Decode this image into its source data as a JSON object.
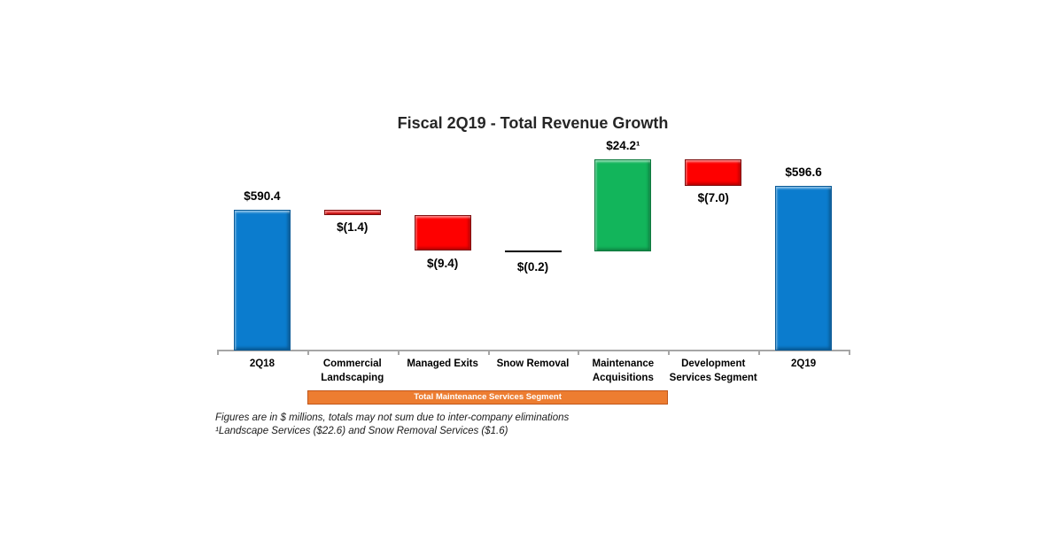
{
  "chart_data": {
    "type": "bar",
    "subtype": "waterfall",
    "title": "Fiscal 2Q19 - Total Revenue Growth",
    "categories": [
      "2Q18",
      "Commercial Landscaping",
      "Managed Exits",
      "Snow Removal",
      "Maintenance Acquisitions",
      "Development Services Segment",
      "2Q19"
    ],
    "values": [
      590.4,
      -1.4,
      -9.4,
      -0.2,
      24.2,
      -7.0,
      596.6
    ],
    "value_labels": [
      "$590.4",
      "$(1.4)",
      "$(9.4)",
      "$(0.2)",
      "$24.2¹",
      "$(7.0)",
      "$596.6"
    ],
    "bar_roles": [
      "total",
      "decrease",
      "decrease",
      "decrease",
      "increase",
      "decrease",
      "total"
    ],
    "colors": {
      "total": "#0b7cce",
      "total_border": "#0a5a97",
      "decrease": "#fe0000",
      "decrease_border": "#7f1011",
      "increase": "#12b55b",
      "increase_border": "#0d7a3e",
      "flat_line": "#000000",
      "axis": "#a6a6a6"
    },
    "axis": {
      "baseline_value": 553.5,
      "grid": false,
      "legend": "none"
    },
    "banner": {
      "label": "Total Maintenance Services Segment",
      "start_category_index": 1,
      "end_category_index": 4,
      "fill": "#ed7d31",
      "border": "#c0571c",
      "text_color": "#ffffff"
    }
  },
  "footnotes": {
    "line1": "Figures are in $ millions, totals may not sum due to inter-company eliminations",
    "line2": "¹Landscape Services ($22.6) and Snow Removal Services ($1.6)"
  }
}
